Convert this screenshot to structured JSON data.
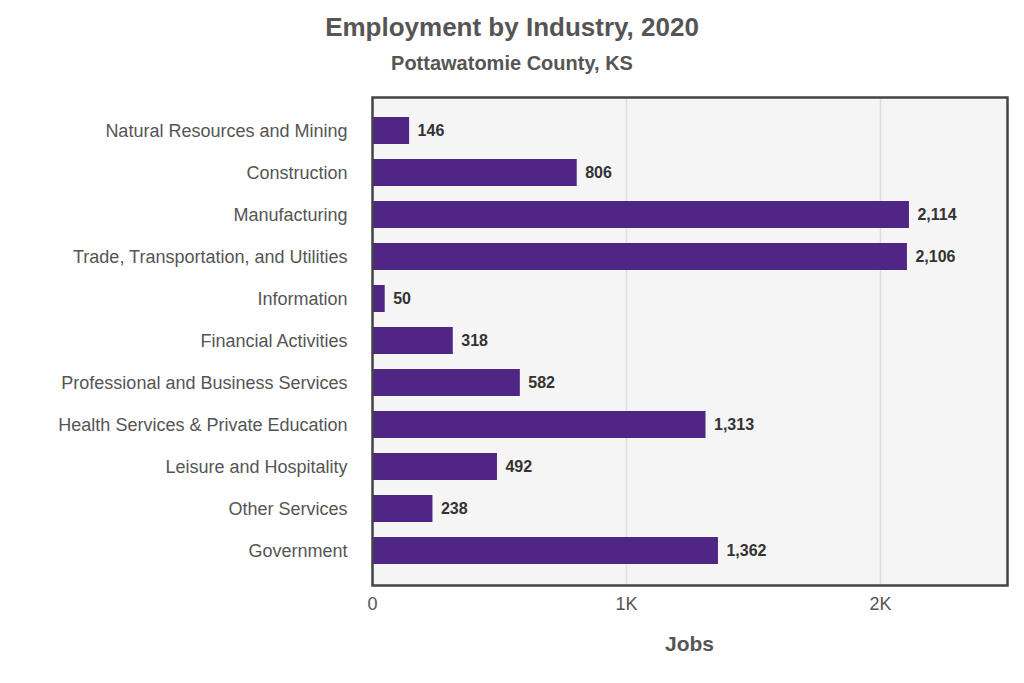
{
  "chart_data": {
    "type": "bar",
    "orientation": "horizontal",
    "title": "Employment by Industry, 2020",
    "subtitle": "Pottawatomie County, KS",
    "x_label": "Jobs",
    "categories": [
      "Natural Resources and Mining",
      "Construction",
      "Manufacturing",
      "Trade, Transportation, and Utilities",
      "Information",
      "Financial Activities",
      "Professional and Business Services",
      "Health Services & Private Education",
      "Leisure and Hospitality",
      "Other Services",
      "Government"
    ],
    "values": [
      146,
      806,
      2114,
      2106,
      50,
      318,
      582,
      1313,
      492,
      238,
      1362
    ],
    "value_labels": [
      "146",
      "806",
      "2,114",
      "2,106",
      "50",
      "318",
      "582",
      "1,313",
      "492",
      "238",
      "1,362"
    ],
    "color": "#4f2683",
    "xlim": [
      0,
      2500
    ],
    "xticks": [
      0,
      {
        "value": 1000,
        "label": "1K"
      },
      {
        "value": 2000,
        "label": "2K"
      }
    ],
    "grid": true,
    "data_labels": true
  }
}
